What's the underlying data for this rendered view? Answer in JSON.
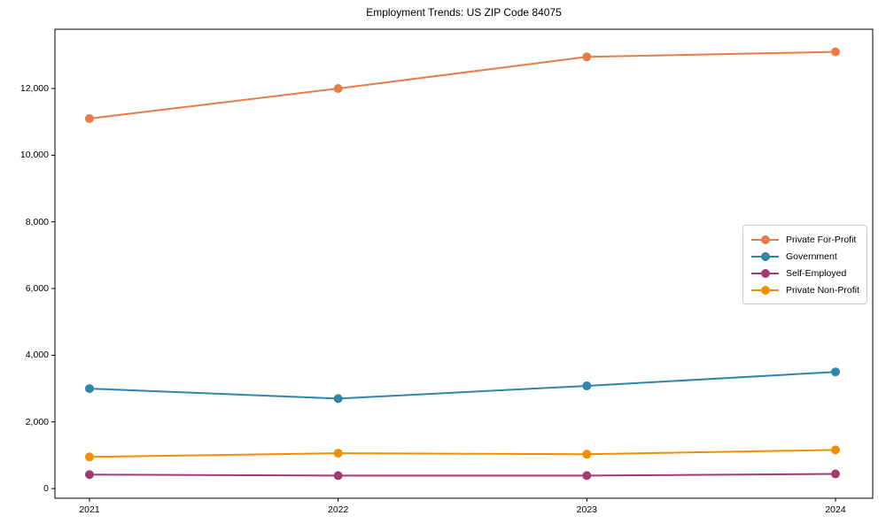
{
  "figure": {
    "background": "#ffffff",
    "frame_color": "#000000",
    "tick_color": "#000000",
    "legend_border_color": "#cccccc"
  },
  "chart_data": {
    "type": "line",
    "title": "Employment Trends: US ZIP Code 84075",
    "xlabel": "",
    "ylabel": "",
    "categories": [
      "2021",
      "2022",
      "2023",
      "2024"
    ],
    "series": [
      {
        "name": "Private For-Profit",
        "color": "#E87D4A",
        "values": [
          11100,
          12000,
          12950,
          13100
        ]
      },
      {
        "name": "Government",
        "color": "#2E86AB",
        "values": [
          3000,
          2700,
          3080,
          3500
        ]
      },
      {
        "name": "Self-Employed",
        "color": "#A23B72",
        "values": [
          420,
          390,
          390,
          440
        ]
      },
      {
        "name": "Private Non-Profit",
        "color": "#F18F01",
        "values": [
          950,
          1060,
          1030,
          1160
        ]
      }
    ],
    "y_ticks": [
      0,
      2000,
      4000,
      6000,
      8000,
      10000,
      12000
    ],
    "y_tick_labels": [
      "0",
      "2,000",
      "4,000",
      "6,000",
      "8,000",
      "10,000",
      "12,000"
    ],
    "ylim": [
      -290,
      13780
    ],
    "grid": false,
    "marker": "circle",
    "legend_position": "center-right"
  }
}
